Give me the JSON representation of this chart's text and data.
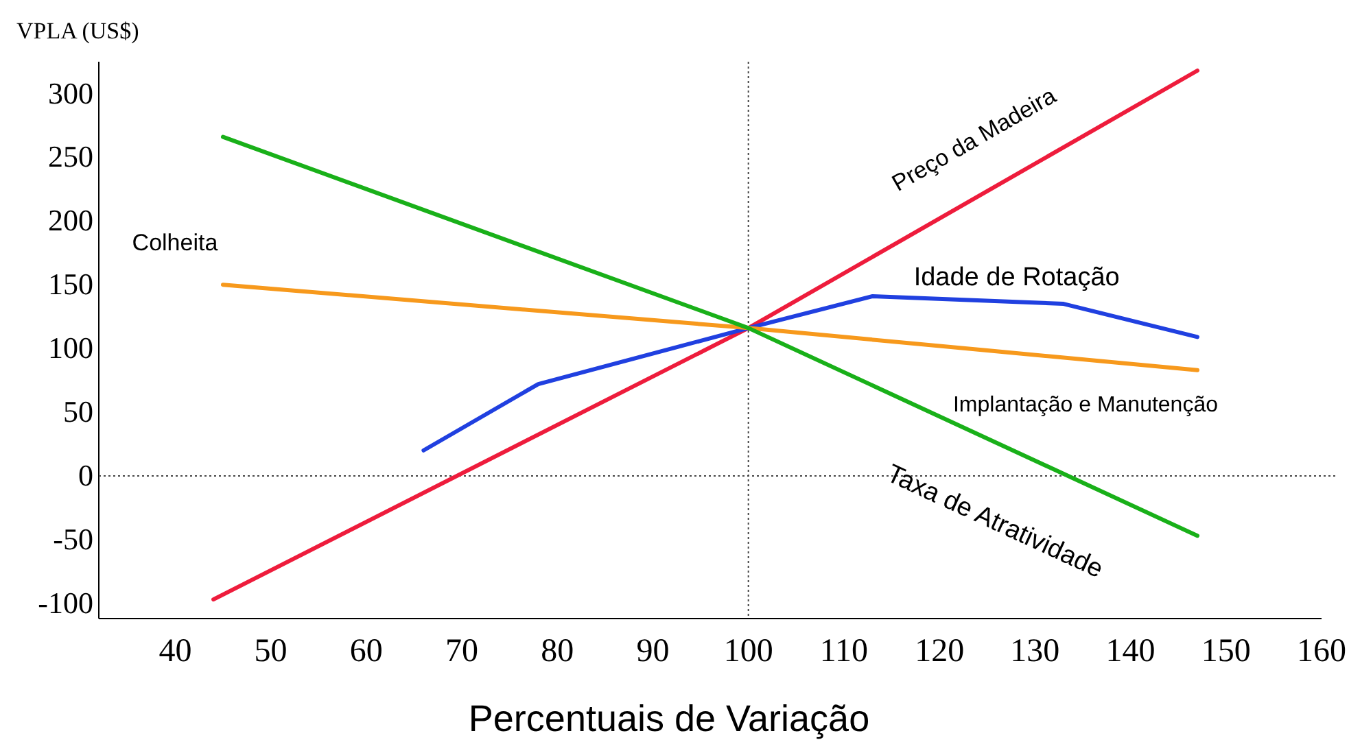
{
  "chart_data": {
    "type": "line",
    "ylabel": "VPLA (US$)",
    "xlabel": "Percentuais de Variação",
    "xlim": [
      32,
      160
    ],
    "ylim": [
      -112,
      325
    ],
    "xticks": [
      40,
      50,
      60,
      70,
      80,
      90,
      100,
      110,
      120,
      130,
      140,
      150,
      160
    ],
    "yticks": [
      -100,
      -50,
      0,
      50,
      100,
      150,
      200,
      250,
      300
    ],
    "grid": false,
    "legend": false,
    "marker": "none",
    "line_style": "solid",
    "series": [
      {
        "name": "Preço da Madeira",
        "color": "#ee1c3c",
        "x": [
          44,
          100,
          147
        ],
        "values": [
          -97,
          116,
          318
        ]
      },
      {
        "name": "Idade de Rotação",
        "color": "#2040e0",
        "x": [
          66,
          78,
          100,
          113,
          133,
          147
        ],
        "values": [
          20,
          72,
          116,
          141,
          135,
          109
        ]
      },
      {
        "name": "Colheita",
        "color": "#f7991c",
        "x": [
          45,
          100,
          147
        ],
        "values": [
          150,
          116,
          83
        ]
      },
      {
        "name": "Taxa de Atratividade",
        "color": "#19b019",
        "x": [
          45,
          100,
          147
        ],
        "values": [
          266,
          116,
          -47
        ]
      }
    ],
    "annotations": [
      {
        "text": "Implantação e Manutenção",
        "x": 147,
        "y": 83
      }
    ],
    "ref_lines": [
      {
        "axis": "x",
        "value": 100,
        "color": "#444444",
        "line_style": "dotted"
      },
      {
        "axis": "y",
        "value": 0,
        "color": "#444444",
        "line_style": "dotted"
      }
    ]
  }
}
